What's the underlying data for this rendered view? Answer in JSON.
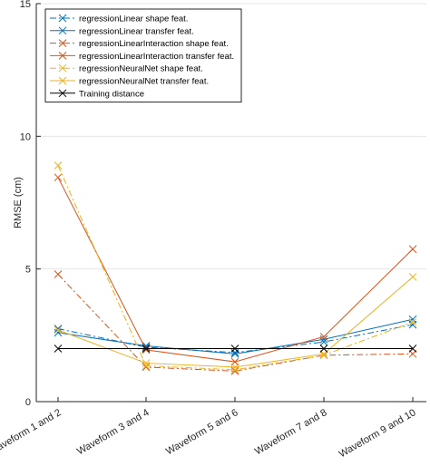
{
  "chart_data": {
    "type": "line",
    "xlabel": "",
    "ylabel": "RMSE (cm)",
    "categories": [
      "Waveform 1 and 2",
      "Waveform 3 and 4",
      "Waveform 5 and 6",
      "Waveform 7 and 8",
      "Waveform 9 and 10"
    ],
    "ylim": [
      0,
      15
    ],
    "yticks": [
      0,
      5,
      10,
      15
    ],
    "grid": "horizontal",
    "legend_position": "top-left",
    "series": [
      {
        "name": "regressionLinear shape feat.",
        "values": [
          2.75,
          2.05,
          1.85,
          2.25,
          2.9
        ],
        "color": "#0072BD",
        "dash": "dashdot",
        "marker": "x"
      },
      {
        "name": "regressionLinear transfer feat.",
        "values": [
          2.6,
          2.1,
          1.8,
          2.35,
          3.1
        ],
        "color": "#0072BD",
        "dash": "solid",
        "marker": "x"
      },
      {
        "name": "regressionLinearInteraction shape feat.",
        "values": [
          4.8,
          1.3,
          1.15,
          1.75,
          1.8
        ],
        "color": "#D95319",
        "dash": "dashdot",
        "marker": "x"
      },
      {
        "name": "regressionLinearInteraction transfer feat.",
        "values": [
          8.45,
          1.95,
          1.5,
          2.45,
          5.75
        ],
        "color": "#D95319",
        "dash": "solid",
        "marker": "x"
      },
      {
        "name": "regressionNeuralNet shape feat.",
        "values": [
          8.9,
          1.35,
          1.2,
          1.75,
          3.0
        ],
        "color": "#EDB120",
        "dash": "dashdot",
        "marker": "x"
      },
      {
        "name": "regressionNeuralNet transfer feat.",
        "values": [
          2.7,
          1.45,
          1.3,
          1.8,
          4.7
        ],
        "color": "#EDB120",
        "dash": "solid",
        "marker": "x"
      },
      {
        "name": "Training distance",
        "values": [
          2.0,
          2.0,
          2.0,
          2.0,
          2.0
        ],
        "color": "#000000",
        "dash": "solid",
        "marker": "x"
      }
    ]
  }
}
